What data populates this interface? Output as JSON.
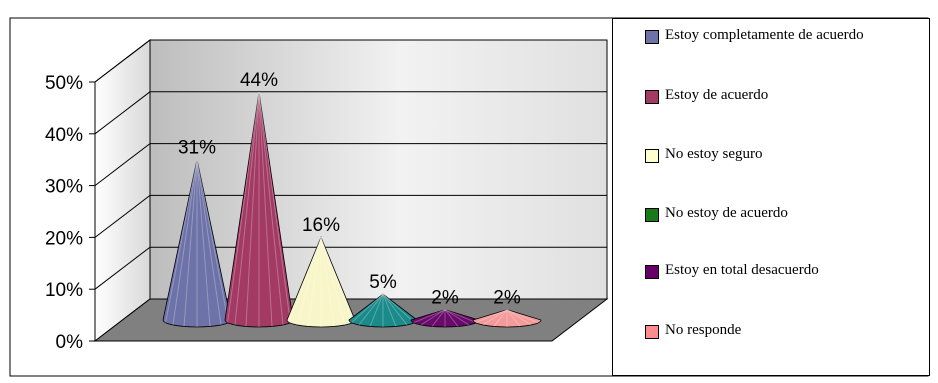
{
  "chart_data": {
    "type": "cone3d",
    "title": "",
    "xlabel": "",
    "ylabel": "",
    "ylim": [
      0,
      50
    ],
    "y_ticks": [
      "0%",
      "10%",
      "20%",
      "30%",
      "40%",
      "50%"
    ],
    "grid": true,
    "legend_position": "right",
    "categories": [
      "Estoy completamente de acuerdo",
      "Estoy de acuerdo",
      "No estoy seguro",
      "No estoy de acuerdo",
      "Estoy en total desacuerdo",
      "No responde"
    ],
    "values": [
      31,
      44,
      16,
      5,
      2,
      2
    ],
    "data_labels": [
      "31%",
      "44%",
      "16%",
      "5%",
      "2%",
      "2%"
    ],
    "colors": [
      "#6d72a8",
      "#a23a64",
      "#f8f6c8",
      "#1a8a8a",
      "#6a0a6a",
      "#f59a9a"
    ],
    "legend_colors": [
      "#6d72a8",
      "#a23a64",
      "#ffffcc",
      "#1a7a1a",
      "#660066",
      "#ff8c8c"
    ]
  }
}
